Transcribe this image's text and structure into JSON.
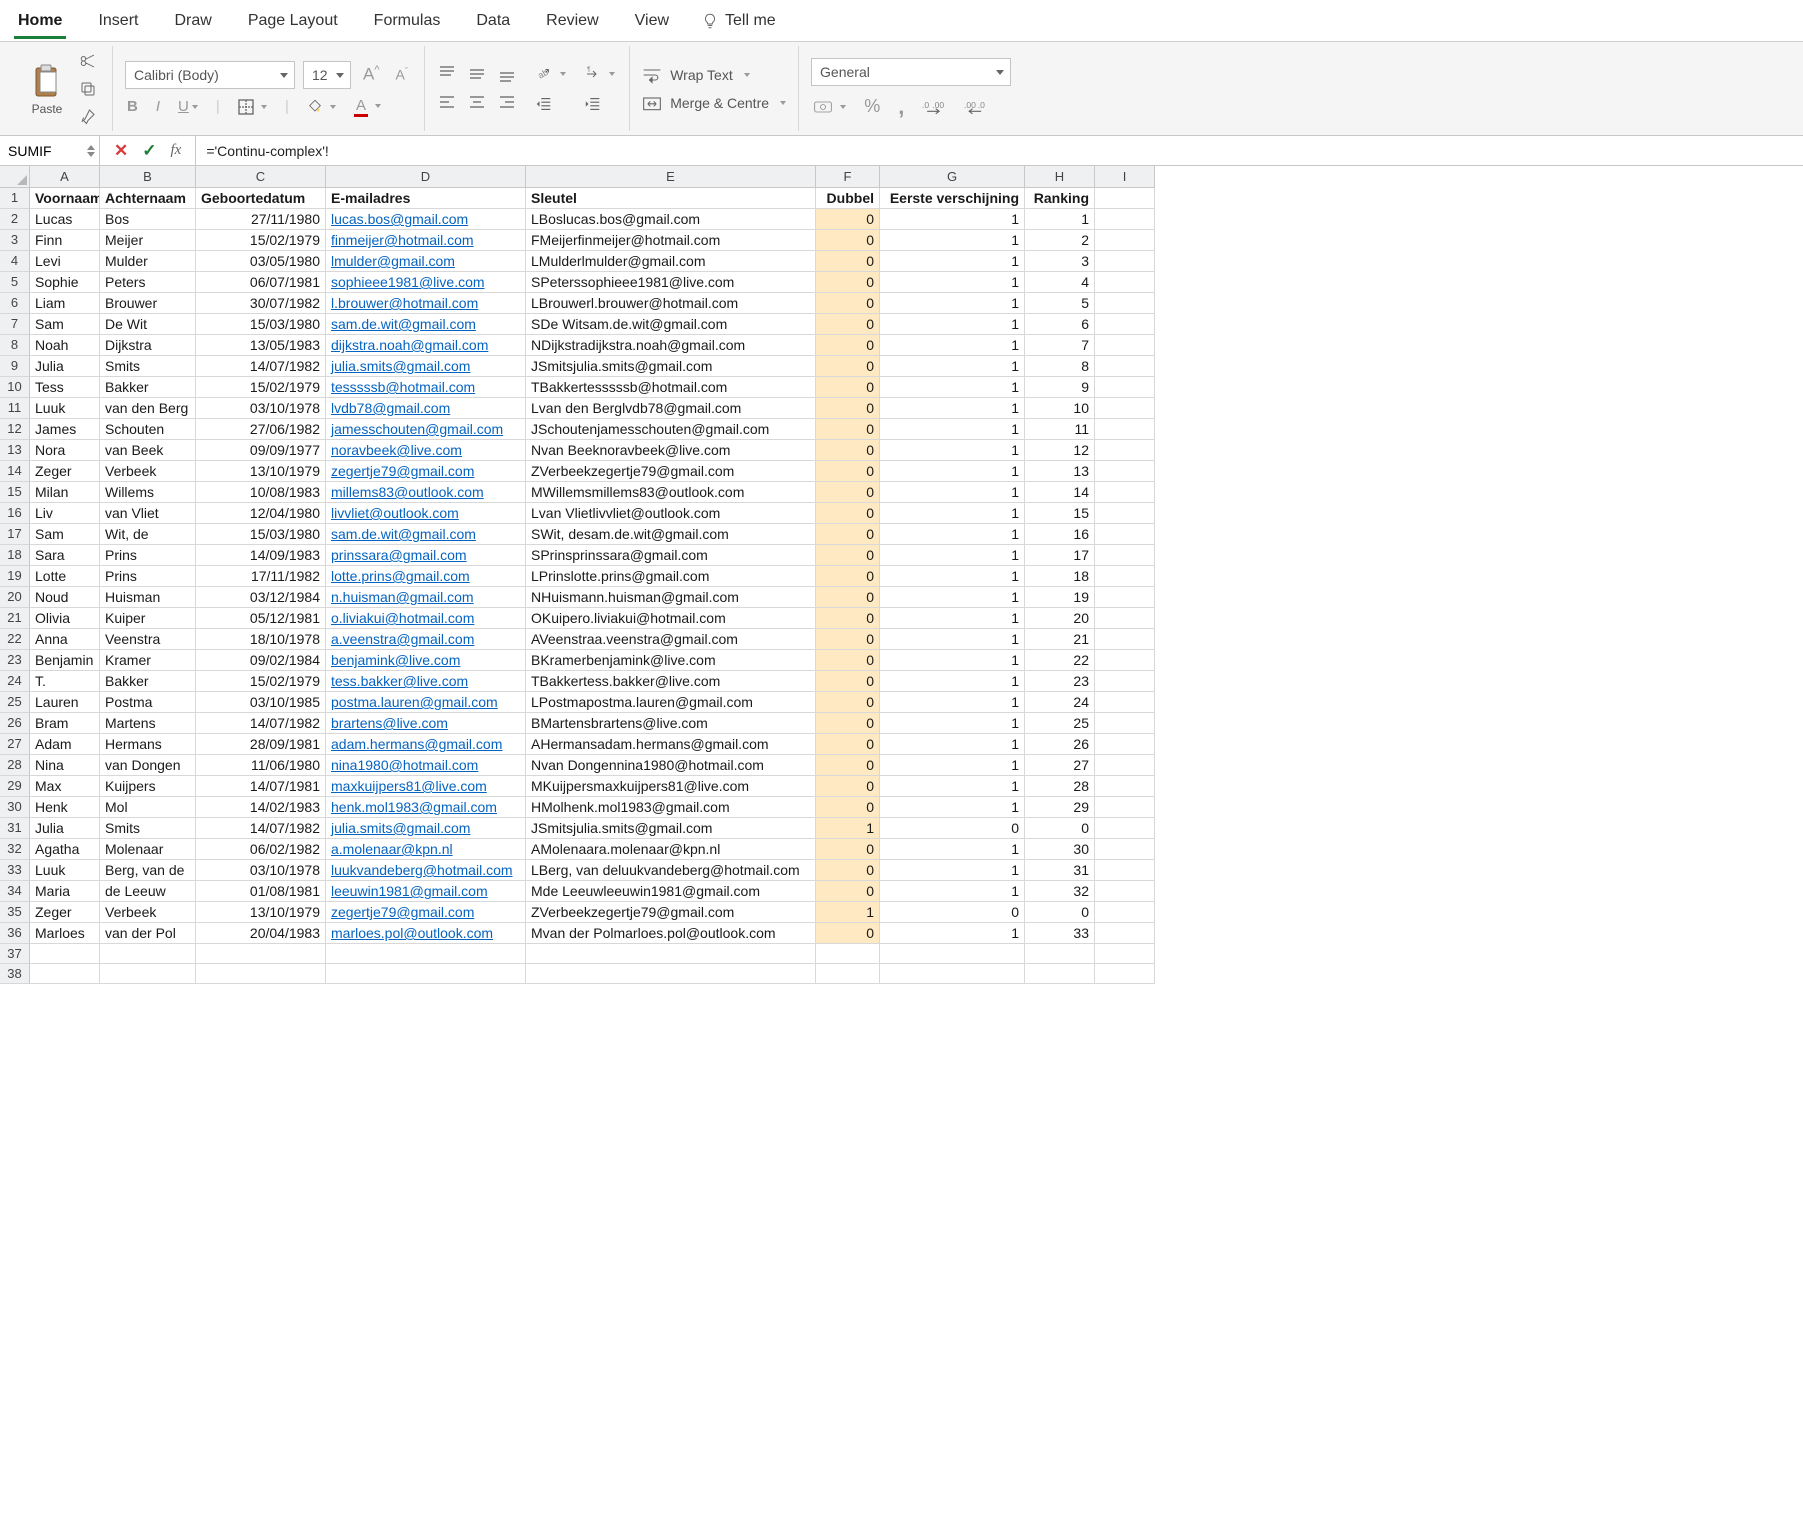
{
  "ribbon": {
    "tabs": [
      "Home",
      "Insert",
      "Draw",
      "Page Layout",
      "Formulas",
      "Data",
      "Review",
      "View"
    ],
    "active_tab": "Home",
    "tell_me": "Tell me"
  },
  "clipboard": {
    "paste_label": "Paste"
  },
  "font": {
    "family": "Calibri (Body)",
    "size": "12"
  },
  "wrap": {
    "wrap_text": "Wrap Text",
    "merge_centre": "Merge & Centre"
  },
  "number_format": {
    "selected": "General"
  },
  "formula_bar": {
    "name_box": "SUMIF",
    "formula": "='Continu-complex'!"
  },
  "columns": [
    "A",
    "B",
    "C",
    "D",
    "E",
    "F",
    "G",
    "H",
    "I"
  ],
  "headers": {
    "A": "Voornaam",
    "B": "Achternaam",
    "C": "Geboortedatum",
    "D": "E-mailadres",
    "E": "Sleutel",
    "F": "Dubbel",
    "G": "Eerste verschijning",
    "H": "Ranking",
    "I": ""
  },
  "rows": [
    {
      "n": 2,
      "A": "Lucas",
      "B": "Bos",
      "C": "27/11/1980",
      "D": "lucas.bos@gmail.com",
      "E": "LBoslucas.bos@gmail.com",
      "F": "0",
      "G": "1",
      "H": "1"
    },
    {
      "n": 3,
      "A": "Finn",
      "B": "Meijer",
      "C": "15/02/1979",
      "D": "finmeijer@hotmail.com",
      "E": "FMeijerfinmeijer@hotmail.com",
      "F": "0",
      "G": "1",
      "H": "2"
    },
    {
      "n": 4,
      "A": "Levi",
      "B": "Mulder",
      "C": "03/05/1980",
      "D": "lmulder@gmail.com",
      "E": "LMulderlmulder@gmail.com",
      "F": "0",
      "G": "1",
      "H": "3"
    },
    {
      "n": 5,
      "A": "Sophie",
      "B": "Peters",
      "C": "06/07/1981",
      "D": "sophieee1981@live.com",
      "E": "SPeterssophieee1981@live.com",
      "F": "0",
      "G": "1",
      "H": "4"
    },
    {
      "n": 6,
      "A": "Liam",
      "B": "Brouwer",
      "C": "30/07/1982",
      "D": "l.brouwer@hotmail.com",
      "E": "LBrouwerl.brouwer@hotmail.com",
      "F": "0",
      "G": "1",
      "H": "5"
    },
    {
      "n": 7,
      "A": "Sam",
      "B": "De Wit",
      "C": "15/03/1980",
      "D": "sam.de.wit@gmail.com",
      "E": "SDe Witsam.de.wit@gmail.com",
      "F": "0",
      "G": "1",
      "H": "6"
    },
    {
      "n": 8,
      "A": "Noah",
      "B": "Dijkstra",
      "C": "13/05/1983",
      "D": "dijkstra.noah@gmail.com",
      "E": "NDijkstradijkstra.noah@gmail.com",
      "F": "0",
      "G": "1",
      "H": "7"
    },
    {
      "n": 9,
      "A": "Julia",
      "B": "Smits",
      "C": "14/07/1982",
      "D": "julia.smits@gmail.com",
      "E": "JSmitsjulia.smits@gmail.com",
      "F": "0",
      "G": "1",
      "H": "8"
    },
    {
      "n": 10,
      "A": "Tess",
      "B": "Bakker",
      "C": "15/02/1979",
      "D": "tesssssb@hotmail.com",
      "E": "TBakkertesssssb@hotmail.com",
      "F": "0",
      "G": "1",
      "H": "9"
    },
    {
      "n": 11,
      "A": "Luuk",
      "B": "van den Berg",
      "C": "03/10/1978",
      "D": "lvdb78@gmail.com",
      "E": "Lvan den Berglvdb78@gmail.com",
      "F": "0",
      "G": "1",
      "H": "10"
    },
    {
      "n": 12,
      "A": "James",
      "B": "Schouten",
      "C": "27/06/1982",
      "D": "jamesschouten@gmail.com",
      "E": "JSchoutenjamesschouten@gmail.com",
      "F": "0",
      "G": "1",
      "H": "11"
    },
    {
      "n": 13,
      "A": "Nora",
      "B": "van Beek",
      "C": "09/09/1977",
      "D": "noravbeek@live.com",
      "E": "Nvan Beeknoravbeek@live.com",
      "F": "0",
      "G": "1",
      "H": "12"
    },
    {
      "n": 14,
      "A": "Zeger",
      "B": "Verbeek",
      "C": "13/10/1979",
      "D": "zegertje79@gmail.com",
      "E": "ZVerbeekzegertje79@gmail.com",
      "F": "0",
      "G": "1",
      "H": "13"
    },
    {
      "n": 15,
      "A": "Milan",
      "B": "Willems",
      "C": "10/08/1983",
      "D": "millems83@outlook.com",
      "E": "MWillemsmillems83@outlook.com",
      "F": "0",
      "G": "1",
      "H": "14"
    },
    {
      "n": 16,
      "A": "Liv",
      "B": "van Vliet",
      "C": "12/04/1980",
      "D": "livvliet@outlook.com",
      "E": "Lvan Vlietlivvliet@outlook.com",
      "F": "0",
      "G": "1",
      "H": "15"
    },
    {
      "n": 17,
      "A": "Sam",
      "B": "Wit, de",
      "C": "15/03/1980",
      "D": "sam.de.wit@gmail.com",
      "E": "SWit, desam.de.wit@gmail.com",
      "F": "0",
      "G": "1",
      "H": "16"
    },
    {
      "n": 18,
      "A": "Sara",
      "B": "Prins",
      "C": "14/09/1983",
      "D": "prinssara@gmail.com",
      "E": "SPrinsprinssara@gmail.com",
      "F": "0",
      "G": "1",
      "H": "17"
    },
    {
      "n": 19,
      "A": "Lotte",
      "B": "Prins",
      "C": "17/11/1982",
      "D": "lotte.prins@gmail.com",
      "E": "LPrinslotte.prins@gmail.com",
      "F": "0",
      "G": "1",
      "H": "18"
    },
    {
      "n": 20,
      "A": "Noud",
      "B": "Huisman",
      "C": "03/12/1984",
      "D": "n.huisman@gmail.com",
      "E": "NHuismann.huisman@gmail.com",
      "F": "0",
      "G": "1",
      "H": "19"
    },
    {
      "n": 21,
      "A": "Olivia",
      "B": "Kuiper",
      "C": "05/12/1981",
      "D": "o.liviakui@hotmail.com",
      "E": "OKuipero.liviakui@hotmail.com",
      "F": "0",
      "G": "1",
      "H": "20"
    },
    {
      "n": 22,
      "A": "Anna",
      "B": "Veenstra",
      "C": "18/10/1978",
      "D": "a.veenstra@gmail.com",
      "E": "AVeenstraa.veenstra@gmail.com",
      "F": "0",
      "G": "1",
      "H": "21"
    },
    {
      "n": 23,
      "A": "Benjamin",
      "B": "Kramer",
      "C": "09/02/1984",
      "D": "benjamink@live.com",
      "E": "BKramerbenjamink@live.com",
      "F": "0",
      "G": "1",
      "H": "22"
    },
    {
      "n": 24,
      "A": "T.",
      "B": "Bakker",
      "C": "15/02/1979",
      "D": "tess.bakker@live.com",
      "E": "TBakkertess.bakker@live.com",
      "F": "0",
      "G": "1",
      "H": "23"
    },
    {
      "n": 25,
      "A": "Lauren",
      "B": "Postma",
      "C": "03/10/1985",
      "D": "postma.lauren@gmail.com",
      "E": "LPostmapostma.lauren@gmail.com",
      "F": "0",
      "G": "1",
      "H": "24"
    },
    {
      "n": 26,
      "A": "Bram",
      "B": "Martens",
      "C": "14/07/1982",
      "D": "brartens@live.com",
      "E": "BMartensbrartens@live.com",
      "F": "0",
      "G": "1",
      "H": "25"
    },
    {
      "n": 27,
      "A": "Adam",
      "B": "Hermans",
      "C": "28/09/1981",
      "D": "adam.hermans@gmail.com",
      "E": "AHermansadam.hermans@gmail.com",
      "F": "0",
      "G": "1",
      "H": "26"
    },
    {
      "n": 28,
      "A": "Nina",
      "B": "van Dongen",
      "C": "11/06/1980",
      "D": "nina1980@hotmail.com",
      "E": "Nvan Dongennina1980@hotmail.com",
      "F": "0",
      "G": "1",
      "H": "27"
    },
    {
      "n": 29,
      "A": "Max",
      "B": "Kuijpers",
      "C": "14/07/1981",
      "D": "maxkuijpers81@live.com",
      "E": "MKuijpersmaxkuijpers81@live.com",
      "F": "0",
      "G": "1",
      "H": "28"
    },
    {
      "n": 30,
      "A": "Henk",
      "B": "Mol",
      "C": "14/02/1983",
      "D": "henk.mol1983@gmail.com",
      "E": "HMolhenk.mol1983@gmail.com",
      "F": "0",
      "G": "1",
      "H": "29"
    },
    {
      "n": 31,
      "A": "Julia",
      "B": "Smits",
      "C": "14/07/1982",
      "D": "julia.smits@gmail.com",
      "E": "JSmitsjulia.smits@gmail.com",
      "F": "1",
      "G": "0",
      "H": "0"
    },
    {
      "n": 32,
      "A": "Agatha",
      "B": "Molenaar",
      "C": "06/02/1982",
      "D": "a.molenaar@kpn.nl",
      "E": "AMolenaara.molenaar@kpn.nl",
      "F": "0",
      "G": "1",
      "H": "30"
    },
    {
      "n": 33,
      "A": "Luuk",
      "B": "Berg, van de",
      "C": "03/10/1978",
      "D": "luukvandeberg@hotmail.com",
      "E": "LBerg, van deluukvandeberg@hotmail.com",
      "F": "0",
      "G": "1",
      "H": "31"
    },
    {
      "n": 34,
      "A": "Maria",
      "B": "de Leeuw",
      "C": "01/08/1981",
      "D": "leeuwin1981@gmail.com",
      "E": "Mde Leeuwleeuwin1981@gmail.com",
      "F": "0",
      "G": "1",
      "H": "32"
    },
    {
      "n": 35,
      "A": "Zeger",
      "B": "Verbeek",
      "C": "13/10/1979",
      "D": "zegertje79@gmail.com",
      "E": "ZVerbeekzegertje79@gmail.com",
      "F": "1",
      "G": "0",
      "H": "0"
    },
    {
      "n": 36,
      "A": "Marloes",
      "B": "van der Pol",
      "C": "20/04/1983",
      "D": "marloes.pol@outlook.com",
      "E": "Mvan der Polmarloes.pol@outlook.com",
      "F": "0",
      "G": "1",
      "H": "33"
    }
  ],
  "empty_rows": [
    37,
    38
  ],
  "colors": {
    "highlight": "#ffe9c2",
    "link": "#0563c1",
    "accent_green": "#1a7f37",
    "accent_red": "#d83b3b"
  }
}
